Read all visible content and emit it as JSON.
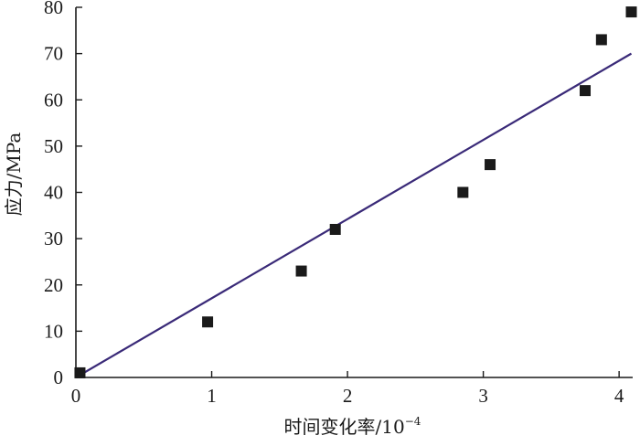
{
  "chart_data": {
    "type": "scatter",
    "xlabel": "时间变化率/10",
    "xlabel_exponent": "−4",
    "ylabel": "应力/MPa",
    "xlim": [
      0,
      4.1
    ],
    "ylim": [
      0,
      80
    ],
    "x_ticks": [
      "0",
      "1",
      "2",
      "3",
      "4"
    ],
    "y_ticks": [
      "0",
      "10",
      "20",
      "30",
      "40",
      "50",
      "60",
      "70",
      "80"
    ],
    "grid": false,
    "legend": "none",
    "series": [
      {
        "type": "scatter",
        "marker": "square",
        "color": "#1a1a1a",
        "points": [
          {
            "x": 0.03,
            "y": 1
          },
          {
            "x": 0.97,
            "y": 12
          },
          {
            "x": 1.66,
            "y": 23
          },
          {
            "x": 1.91,
            "y": 32
          },
          {
            "x": 2.85,
            "y": 40
          },
          {
            "x": 3.05,
            "y": 46
          },
          {
            "x": 3.75,
            "y": 62
          },
          {
            "x": 3.87,
            "y": 73
          },
          {
            "x": 4.09,
            "y": 79
          }
        ]
      },
      {
        "type": "line",
        "color": "#3a2a78",
        "points": [
          {
            "x": 0,
            "y": 0
          },
          {
            "x": 4.09,
            "y": 70
          }
        ]
      }
    ]
  }
}
